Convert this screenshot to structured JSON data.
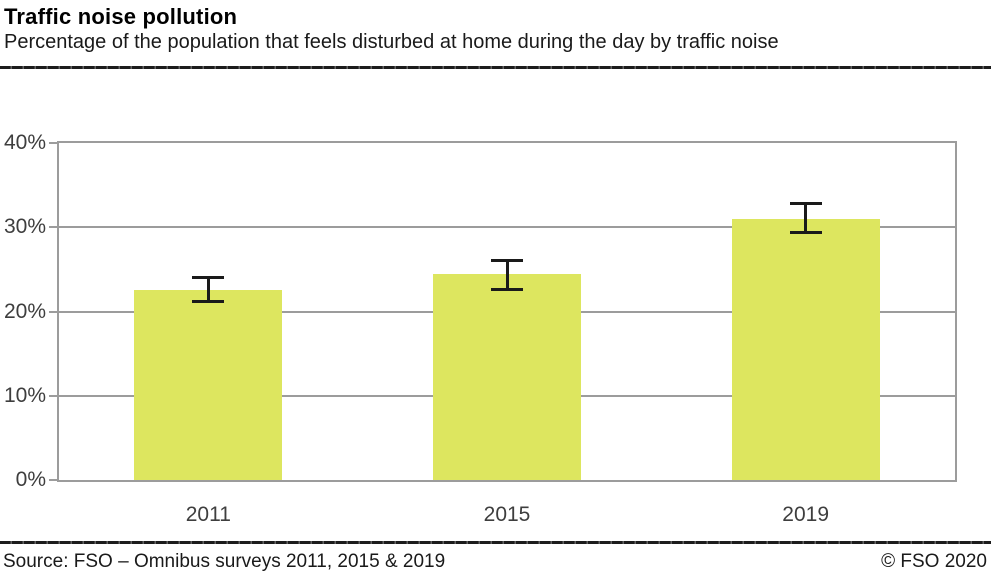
{
  "header": {
    "title": "Traffic noise pollution",
    "subtitle": "Percentage of the population that feels disturbed at home during the day by traffic noise"
  },
  "footer": {
    "source": "Source: FSO – Omnibus surveys 2011, 2015 & 2019",
    "copyright": "© FSO 2020"
  },
  "chart_data": {
    "type": "bar",
    "title": "Traffic noise pollution",
    "subtitle": "Percentage of the population that feels disturbed at home during the day by traffic noise",
    "categories": [
      "2011",
      "2015",
      "2019"
    ],
    "values": [
      22.5,
      24.4,
      31.0
    ],
    "error_bars": {
      "low": [
        21.2,
        22.6,
        29.4
      ],
      "high": [
        24.0,
        26.1,
        32.8
      ]
    },
    "xlabel": "",
    "ylabel": "",
    "ylim": [
      0,
      40
    ],
    "yticks": [
      {
        "value": 40,
        "label": "40%"
      },
      {
        "value": 30,
        "label": "30%"
      },
      {
        "value": 20,
        "label": "20%"
      },
      {
        "value": 10,
        "label": "10%"
      },
      {
        "value": 0,
        "label": "0%"
      }
    ],
    "grid": true,
    "legend": false,
    "colors": {
      "bar": "#dde65f",
      "grid": "#9c9c9c",
      "error": "#1a1a1a",
      "tick_label": "#3e3e3e"
    }
  }
}
